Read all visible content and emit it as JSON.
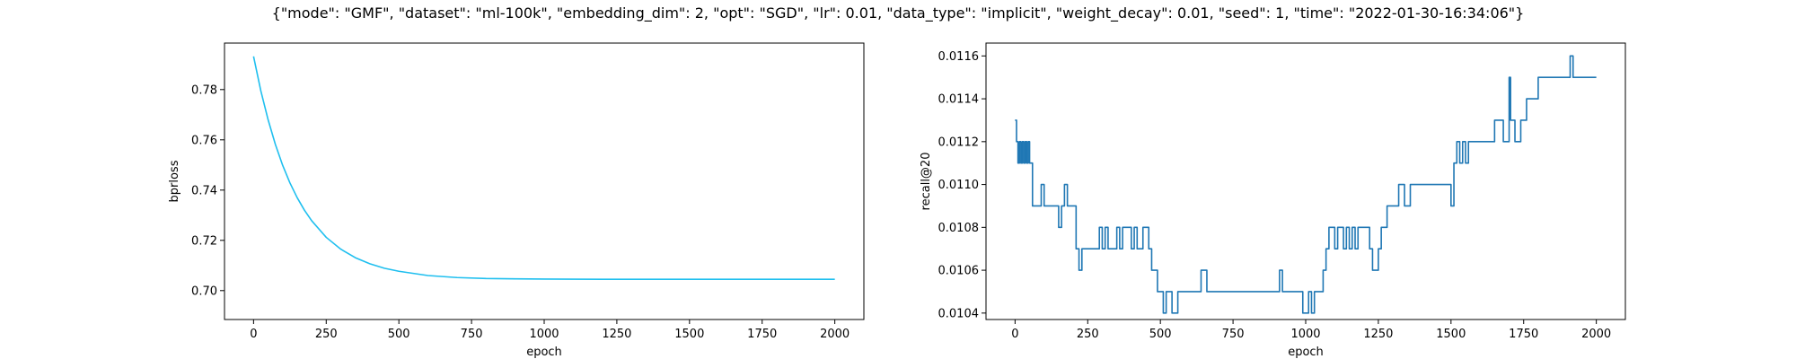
{
  "suptitle": "{\"mode\": \"GMF\", \"dataset\": \"ml-100k\", \"embedding_dim\": 2, \"opt\": \"SGD\", \"lr\": 0.01, \"data_type\": \"implicit\", \"weight_decay\": 0.01, \"seed\": 1, \"time\": \"2022-01-30-16:34:06\"}",
  "chart_data": [
    {
      "type": "line",
      "title": "",
      "xlabel": "epoch",
      "ylabel": "bprloss",
      "xlim": [
        -100,
        2100
      ],
      "ylim": [
        0.6885,
        0.7985
      ],
      "xticks": [
        0,
        250,
        500,
        750,
        1000,
        1250,
        1500,
        1750,
        2000
      ],
      "yticks": [
        0.7,
        0.72,
        0.74,
        0.76,
        0.78
      ],
      "ytick_labels": [
        "0.70",
        "0.72",
        "0.74",
        "0.76",
        "0.78"
      ],
      "color": "#1fbfef",
      "series": [
        {
          "x": [
            0,
            25,
            50,
            75,
            100,
            125,
            150,
            175,
            200,
            250,
            300,
            350,
            400,
            450,
            500,
            600,
            700,
            800,
            900,
            1000,
            1200,
            1400,
            1600,
            1800,
            2000
          ],
          "y": [
            0.7932,
            0.7795,
            0.768,
            0.7582,
            0.7499,
            0.7429,
            0.737,
            0.732,
            0.7278,
            0.7212,
            0.7165,
            0.7131,
            0.7107,
            0.7089,
            0.7077,
            0.706,
            0.7052,
            0.7048,
            0.7047,
            0.7046,
            0.7045,
            0.7045,
            0.7045,
            0.7045,
            0.7045
          ]
        }
      ]
    },
    {
      "type": "line",
      "title": "",
      "xlabel": "epoch",
      "ylabel": "recall@20",
      "xlim": [
        -100,
        2100
      ],
      "ylim": [
        0.01037,
        0.01166
      ],
      "xticks": [
        0,
        250,
        500,
        750,
        1000,
        1250,
        1500,
        1750,
        2000
      ],
      "yticks": [
        0.0104,
        0.0106,
        0.0108,
        0.011,
        0.0112,
        0.0114,
        0.0116
      ],
      "ytick_labels": [
        "0.0104",
        "0.0106",
        "0.0108",
        "0.0110",
        "0.0112",
        "0.0114",
        "0.0116"
      ],
      "color": "#1f77b4",
      "series": [
        {
          "x": [
            0,
            5,
            10,
            15,
            20,
            25,
            30,
            35,
            40,
            45,
            50,
            55,
            60,
            90,
            100,
            150,
            160,
            170,
            180,
            210,
            220,
            230,
            290,
            300,
            310,
            320,
            350,
            360,
            370,
            400,
            410,
            420,
            440,
            460,
            470,
            480,
            490,
            500,
            510,
            520,
            540,
            560,
            640,
            660,
            700,
            900,
            910,
            920,
            980,
            990,
            1000,
            1010,
            1020,
            1030,
            1040,
            1060,
            1070,
            1080,
            1100,
            1110,
            1130,
            1140,
            1150,
            1160,
            1170,
            1180,
            1190,
            1220,
            1230,
            1250,
            1260,
            1270,
            1280,
            1300,
            1320,
            1340,
            1360,
            1380,
            1420,
            1450,
            1500,
            1510,
            1520,
            1530,
            1540,
            1550,
            1560,
            1570,
            1600,
            1650,
            1680,
            1700,
            1705,
            1710,
            1720,
            1740,
            1760,
            1780,
            1800,
            1900,
            1910,
            1920,
            1940,
            2000
          ],
          "y": [
            0.0113,
            0.0112,
            0.0111,
            0.0112,
            0.0111,
            0.0112,
            0.0111,
            0.0112,
            0.0111,
            0.0112,
            0.0111,
            0.0111,
            0.0109,
            0.011,
            0.0109,
            0.0108,
            0.0109,
            0.011,
            0.0109,
            0.0107,
            0.0106,
            0.0107,
            0.0108,
            0.0107,
            0.0108,
            0.0107,
            0.0108,
            0.0107,
            0.0108,
            0.0107,
            0.0108,
            0.0107,
            0.0108,
            0.0107,
            0.0106,
            0.0106,
            0.0105,
            0.0105,
            0.0104,
            0.0105,
            0.0104,
            0.0105,
            0.0106,
            0.0105,
            0.0105,
            0.0105,
            0.0106,
            0.0105,
            0.0105,
            0.0104,
            0.0104,
            0.0105,
            0.0104,
            0.0105,
            0.0105,
            0.0106,
            0.0107,
            0.0108,
            0.0107,
            0.0108,
            0.0107,
            0.0108,
            0.0107,
            0.0108,
            0.0107,
            0.0108,
            0.0108,
            0.0107,
            0.0106,
            0.0107,
            0.0108,
            0.0108,
            0.0109,
            0.0109,
            0.011,
            0.0109,
            0.011,
            0.011,
            0.011,
            0.011,
            0.0109,
            0.0111,
            0.0112,
            0.0111,
            0.0112,
            0.0111,
            0.0112,
            0.0112,
            0.0112,
            0.0113,
            0.0112,
            0.0115,
            0.0113,
            0.0113,
            0.0112,
            0.0113,
            0.0114,
            0.0114,
            0.0115,
            0.0115,
            0.0116,
            0.0115,
            0.0115,
            0.0115
          ]
        }
      ]
    }
  ]
}
